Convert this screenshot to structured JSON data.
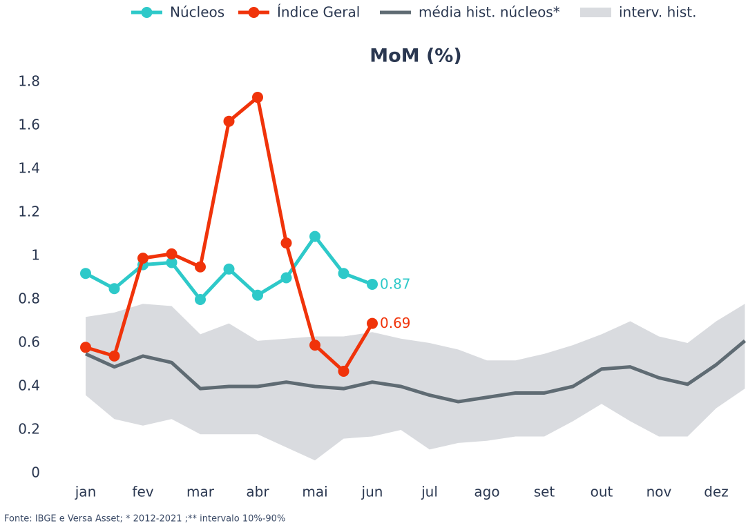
{
  "chart_data": {
    "type": "line",
    "title": "MoM (%)",
    "note": "Fonte: IBGE e Versa Asset; * 2012-2021 ;** intervalo 10%-90%",
    "categories": [
      "jan",
      null,
      "fev",
      null,
      "mar",
      null,
      "abr",
      null,
      "mai",
      null,
      "jun",
      null,
      "jul",
      null,
      "ago",
      null,
      "set",
      null,
      "out",
      null,
      "nov",
      null,
      "dez",
      null
    ],
    "ylim": [
      0,
      1.8
    ],
    "yticks": [
      0,
      0.2,
      0.4,
      0.6,
      0.8,
      1,
      1.2,
      1.4,
      1.6,
      1.8
    ],
    "grid": false,
    "legend": "top",
    "series": [
      {
        "name": "Núcleos",
        "color": "#2ec9c9",
        "markers": true,
        "values": [
          0.92,
          0.85,
          0.96,
          0.97,
          0.8,
          0.94,
          0.82,
          0.9,
          1.09,
          0.92,
          0.87,
          null,
          null,
          null,
          null,
          null,
          null,
          null,
          null,
          null,
          null,
          null,
          null,
          null
        ]
      },
      {
        "name": "Índice Geral",
        "color": "#f0330a",
        "markers": true,
        "values": [
          0.58,
          0.54,
          0.99,
          1.01,
          0.95,
          1.62,
          1.73,
          1.06,
          0.59,
          0.47,
          0.69,
          null,
          null,
          null,
          null,
          null,
          null,
          null,
          null,
          null,
          null,
          null,
          null,
          null
        ]
      },
      {
        "name": "média hist. núcleos*",
        "color": "#5f6b73",
        "markers": false,
        "values": [
          0.55,
          0.49,
          0.54,
          0.51,
          0.39,
          0.4,
          0.4,
          0.42,
          0.4,
          0.39,
          0.42,
          0.4,
          0.36,
          0.33,
          0.35,
          0.37,
          0.37,
          0.4,
          0.48,
          0.49,
          0.44,
          0.41,
          0.5,
          0.61
        ]
      },
      {
        "name": "interv. hist.",
        "color": "#d9dbdf",
        "area": true,
        "lower": [
          0.36,
          0.25,
          0.22,
          0.25,
          0.18,
          0.18,
          0.18,
          0.12,
          0.06,
          0.16,
          0.17,
          0.2,
          0.11,
          0.14,
          0.15,
          0.17,
          0.17,
          0.24,
          0.32,
          0.24,
          0.17,
          0.17,
          0.3,
          0.39
        ],
        "values": [
          0.72,
          0.74,
          0.78,
          0.77,
          0.64,
          0.69,
          0.61,
          0.62,
          0.63,
          0.63,
          0.65,
          0.62,
          0.6,
          0.57,
          0.52,
          0.52,
          0.55,
          0.59,
          0.64,
          0.7,
          0.63,
          0.6,
          0.7,
          0.78
        ]
      }
    ]
  }
}
